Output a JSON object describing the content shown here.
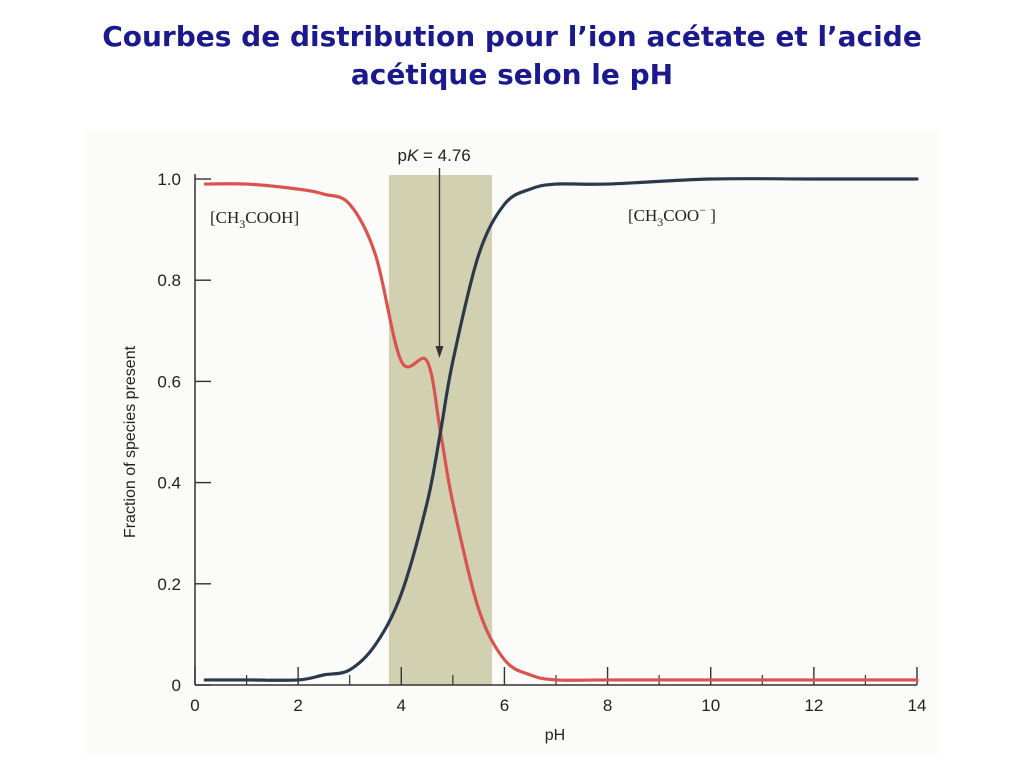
{
  "title": {
    "line1": "Courbes de distribution pour l’ion acétate et l’acide",
    "line2": "acétique selon le pH"
  },
  "chart_data": {
    "type": "line",
    "xlabel": "pH",
    "ylabel": "Fraction of species present",
    "xlim": [
      0,
      14
    ],
    "ylim": [
      0,
      1.0
    ],
    "xticks": [
      "0",
      "2",
      "4",
      "6",
      "8",
      "10",
      "12",
      "14"
    ],
    "yticks": [
      "0",
      "0.2",
      "0.4",
      "0.6",
      "0.8",
      "1.0"
    ],
    "pKa": 4.76,
    "buffer_region": [
      3.76,
      5.76
    ],
    "annotation": {
      "prefix": "p",
      "italic": "K",
      "rest": " = 4.76"
    },
    "series": [
      {
        "name": "[CH3COOH]",
        "label_parts": [
          "[CH",
          "3",
          "COOH]"
        ],
        "color": "#d9534f",
        "x": [
          0.2,
          1,
          2,
          2.5,
          3,
          3.5,
          4,
          4.5,
          4.76,
          5,
          5.5,
          6,
          6.5,
          7,
          8,
          10,
          12,
          14
        ],
        "values": [
          0.99,
          0.99,
          0.98,
          0.97,
          0.95,
          0.85,
          0.64,
          0.64,
          0.5,
          0.36,
          0.15,
          0.05,
          0.02,
          0.01,
          0.01,
          0.01,
          0.01,
          0.01
        ]
      },
      {
        "name": "[CH3COO−]",
        "label_parts": [
          "[CH",
          "3",
          "COO",
          "−",
          " ]"
        ],
        "color": "#2b3a4a",
        "x": [
          0.2,
          1,
          2,
          2.5,
          3,
          3.5,
          4,
          4.5,
          4.76,
          5,
          5.5,
          6,
          6.5,
          7,
          8,
          10,
          12,
          14
        ],
        "values": [
          0.01,
          0.01,
          0.01,
          0.02,
          0.03,
          0.08,
          0.18,
          0.36,
          0.5,
          0.64,
          0.85,
          0.95,
          0.98,
          0.99,
          0.99,
          1.0,
          1.0,
          1.0
        ]
      }
    ]
  }
}
